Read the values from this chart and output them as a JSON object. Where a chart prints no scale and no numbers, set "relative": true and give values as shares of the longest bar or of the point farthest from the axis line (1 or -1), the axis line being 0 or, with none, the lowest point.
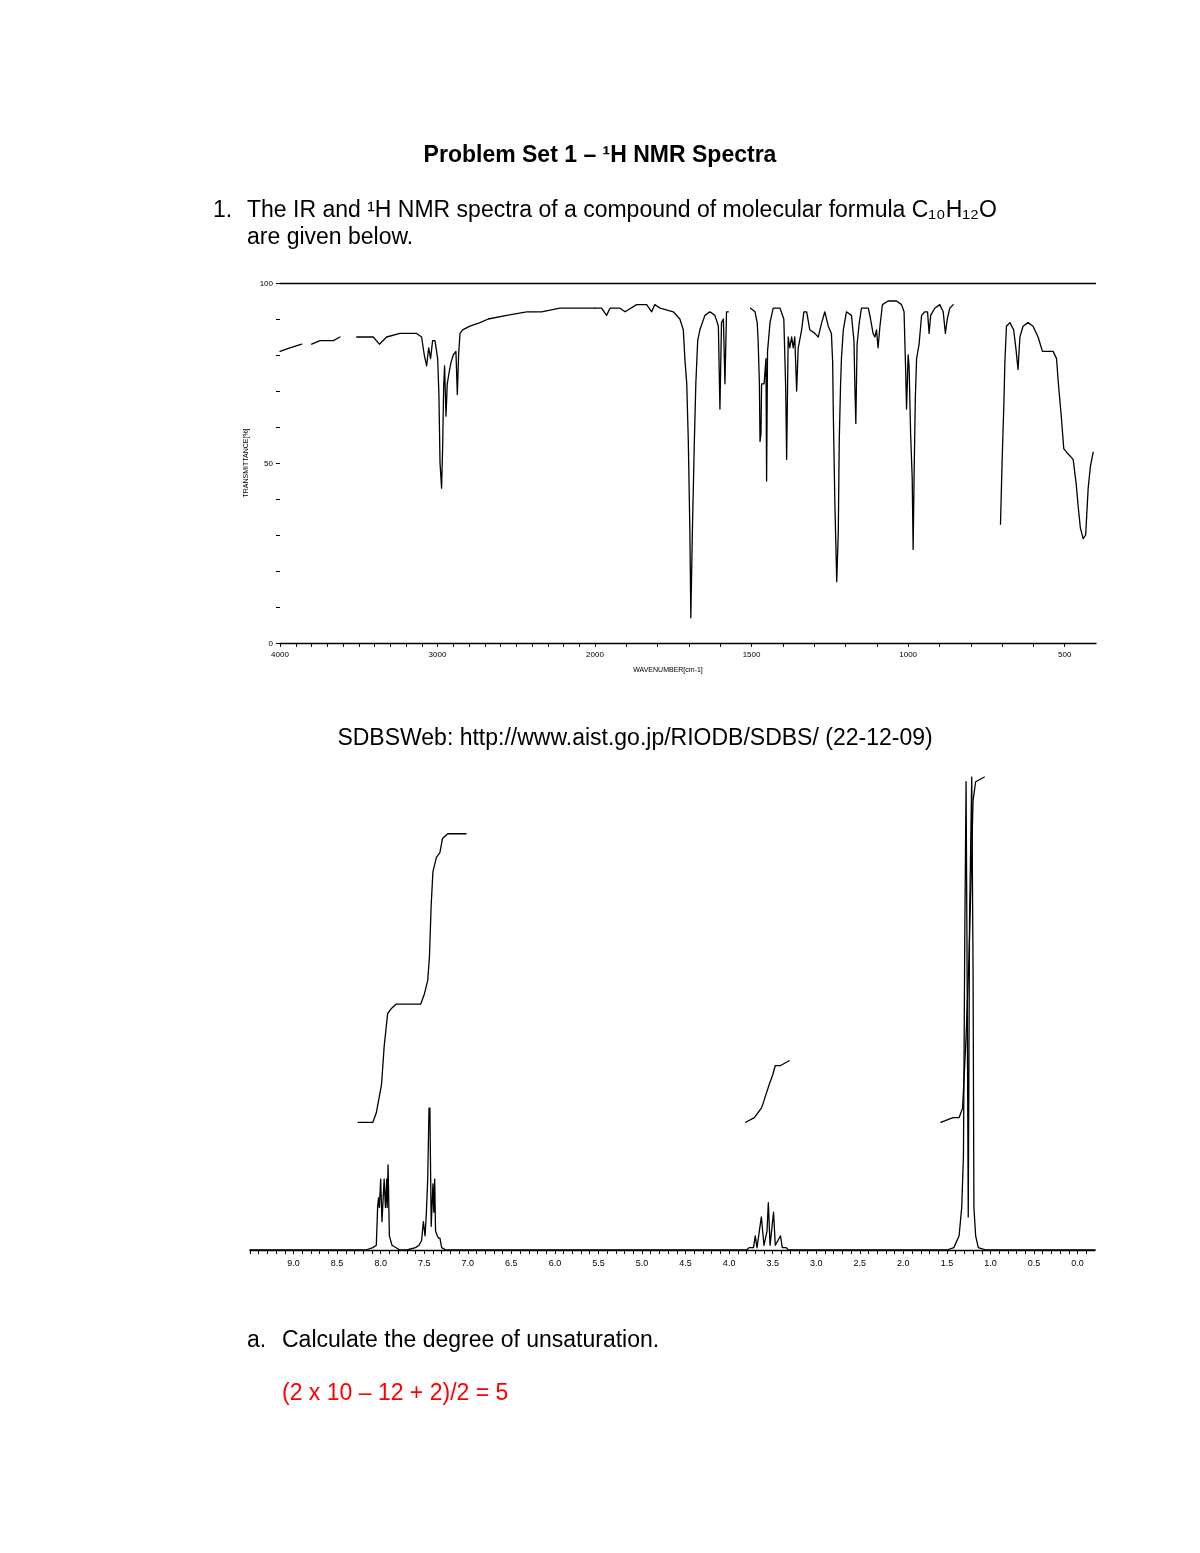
{
  "chart_data": [
    {
      "type": "line",
      "title": "Problem Set 1 – ¹H NMR Spectra",
      "subtitle": "1. The IR and ¹H NMR spectra of a compound of molecular formula C₁₀H₁₂O are given below.",
      "ylabel": "TRANSMITTANCE[%]",
      "color": "#000000",
      "x": [
        4000,
        3937,
        3862,
        3840,
        3799,
        3746,
        3700,
        3661,
        3619,
        3570,
        3513,
        3408,
        3369,
        3323,
        3238,
        3132,
        3101,
        3084,
        3069,
        3056,
        3044,
        3031,
        3016,
        2999,
        2991,
        2984,
        2974,
        2967,
        2961,
        2955,
        2946,
        2938,
        2927,
        2914,
        2900,
        2883,
        2874,
        2866,
        2857,
        2840,
        2794,
        2730,
        2678,
        2561,
        2434,
        2339,
        2223,
        2117,
        2000
      ],
      "values": [
        81,
        82,
        83,
        null,
        83,
        84,
        84,
        84,
        85,
        null,
        85,
        85,
        83,
        85,
        86,
        86,
        85,
        80,
        77,
        82,
        79,
        84,
        84,
        79,
        69,
        50,
        43,
        55,
        71,
        77,
        63,
        72,
        75,
        78,
        80,
        81,
        69,
        80,
        86,
        87,
        88,
        89,
        90,
        91,
        92,
        92,
        93,
        93,
        93
      ],
      "xlim": [
        4000,
        2000
      ],
      "ylim": [
        0,
        100
      ],
      "xticks": [
        4000,
        {
          "value": 3900,
          "label": null
        },
        {
          "value": 3800,
          "label": null
        },
        {
          "value": 3700,
          "label": null
        },
        {
          "value": 3600,
          "label": null
        },
        {
          "value": 3500,
          "label": null
        },
        {
          "value": 3400,
          "label": null
        },
        {
          "value": 3300,
          "label": null
        },
        {
          "value": 3200,
          "label": null
        },
        {
          "value": 3100,
          "label": null
        },
        3000,
        {
          "value": 2900,
          "label": null
        },
        {
          "value": 2800,
          "label": null
        },
        {
          "value": 2700,
          "label": null
        },
        {
          "value": 2600,
          "label": null
        },
        {
          "value": 2500,
          "label": null
        },
        {
          "value": 2400,
          "label": null
        },
        {
          "value": 2300,
          "label": null
        },
        {
          "value": 2200,
          "label": null
        },
        {
          "value": 2100,
          "label": null
        },
        2000
      ],
      "yticks": [
        0,
        {
          "value": 10,
          "label": null
        },
        {
          "value": 20,
          "label": null
        },
        {
          "value": 30,
          "label": null
        },
        {
          "value": 40,
          "label": null
        },
        50,
        {
          "value": 60,
          "label": null
        },
        {
          "value": 70,
          "label": null
        },
        {
          "value": 80,
          "label": null
        },
        {
          "value": 90,
          "label": null
        },
        100
      ],
      "ref_lines": [
        {
          "axis": "y",
          "value": 100
        }
      ]
    },
    {
      "type": "line",
      "xlabel": "WAVENUMBER[cm-1]",
      "annotations": [
        "SDBSWeb: http://www.aist.go.jp/RIODB/SDBS/ (22-12-09)"
      ],
      "color": "#000000",
      "x": [
        2000,
        1979,
        1963,
        1952,
        1920,
        1904,
        1867,
        1835,
        1819,
        1809,
        1792,
        1750,
        1729,
        1718,
        1713,
        1707,
        1702,
        1697,
        1694,
        1689,
        1683,
        1678,
        1672,
        1665,
        1649,
        1633,
        1617,
        1606,
        1601,
        1596,
        1590,
        1585,
        1580,
        1574,
        1540,
        1503,
        1489,
        1482,
        1479,
        1475,
        1473,
        1470,
        1468,
        1460,
        1454,
        1452,
        1449,
        1441,
        1431,
        1409,
        1397,
        1391,
        1388,
        1385,
        1383,
        1378,
        1372,
        1367,
        1362,
        1356,
        1351,
        1340,
        1333,
        1324,
        1314,
        1298,
        1287,
        1276,
        1266,
        1255,
        1245,
        1241,
        1239,
        1234,
        1228,
        1223,
        1220,
        1216,
        1213,
        1207,
        1197,
        1181,
        1173,
        1170,
        1167,
        1163,
        1156,
        1149,
        1127,
        1120,
        1112,
        1106,
        1101,
        1096,
        1090,
        1082,
        1064,
        1037,
        1021,
        1013,
        1008,
        1005,
        1000,
        997,
        992,
        987,
        984,
        981,
        977,
        973,
        965,
        957,
        947,
        938,
        933,
        928,
        915,
        899,
        888,
        881,
        875,
        867,
        856,
        780,
        705,
        700,
        694,
        691,
        686,
        675,
        663,
        656,
        649,
        643,
        633,
        617,
        601,
        585,
        571,
        553,
        537,
        526,
        521,
        510,
        503,
        494,
        473,
        463,
        457,
        450,
        441,
        433,
        425,
        418,
        409
      ],
      "values": [
        93,
        93,
        91,
        93,
        93,
        92,
        94,
        94,
        92,
        94,
        93,
        92,
        90,
        87,
        79,
        72,
        56,
        31,
        7,
        31,
        55,
        72,
        84,
        87,
        91,
        92,
        91,
        88,
        65,
        89,
        90,
        72,
        92,
        92,
        null,
        93,
        92,
        89,
        84,
        72,
        56,
        58,
        72,
        72,
        79,
        45,
        81,
        89,
        93,
        93,
        90,
        71,
        51,
        71,
        85,
        82,
        85,
        82,
        85,
        70,
        82,
        87,
        92,
        92,
        87,
        86,
        85,
        89,
        92,
        88,
        86,
        78,
        64,
        39,
        17,
        31,
        56,
        71,
        79,
        87,
        92,
        91,
        84,
        71,
        61,
        83,
        89,
        93,
        93,
        90,
        86,
        85,
        87,
        82,
        88,
        94,
        95,
        95,
        94,
        92,
        76,
        65,
        80,
        77,
        58,
        46,
        26,
        46,
        68,
        79,
        83,
        91,
        92,
        92,
        86,
        91,
        93,
        94,
        92,
        86,
        90,
        93,
        94,
        null,
        33,
        50,
        67,
        78,
        88,
        89,
        87,
        82,
        76,
        85,
        88,
        89,
        88,
        85,
        81,
        81,
        81,
        79,
        73,
        62,
        54,
        53,
        51,
        44,
        38,
        32,
        29,
        30,
        43,
        49,
        53
      ],
      "xlim": [
        2000,
        400
      ],
      "ylim": [
        0,
        100
      ],
      "tick_labels": "x",
      "xticks": [
        {
          "value": 1900,
          "label": null
        },
        {
          "value": 1800,
          "label": null
        },
        {
          "value": 1700,
          "label": null
        },
        {
          "value": 1600,
          "label": null
        },
        1500,
        {
          "value": 1400,
          "label": null
        },
        {
          "value": 1300,
          "label": null
        },
        {
          "value": 1200,
          "label": null
        },
        {
          "value": 1100,
          "label": null
        },
        1000,
        {
          "value": 900,
          "label": null
        },
        {
          "value": 800,
          "label": null
        },
        {
          "value": 700,
          "label": null
        },
        {
          "value": 600,
          "label": null
        },
        500
      ],
      "ref_lines": [
        {
          "axis": "y",
          "value": 100
        }
      ]
    },
    {
      "type": "line",
      "relative": true,
      "annotations": [
        "a. Calculate the degree of unsaturation.",
        "(2 x 10 – 12 + 2)/2 = 5"
      ],
      "xlim": [
        9.5,
        -0.2
      ],
      "xticks": [
        {
          "value": 9.5,
          "label": null
        },
        {
          "value": 9.4,
          "label": null
        },
        {
          "value": 9.3,
          "label": null
        },
        {
          "value": 9.2,
          "label": null
        },
        {
          "value": 9.1,
          "label": null
        },
        {
          "value": 9,
          "label": "9.0"
        },
        {
          "value": 8.9,
          "label": null
        },
        {
          "value": 8.8,
          "label": null
        },
        {
          "value": 8.7,
          "label": null
        },
        {
          "value": 8.6,
          "label": null
        },
        {
          "value": 8.5,
          "label": "8.5"
        },
        {
          "value": 8.4,
          "label": null
        },
        {
          "value": 8.3,
          "label": null
        },
        {
          "value": 8.2,
          "label": null
        },
        {
          "value": 8.1,
          "label": null
        },
        {
          "value": 8,
          "label": "8.0"
        },
        {
          "value": 7.9,
          "label": null
        },
        {
          "value": 7.8,
          "label": null
        },
        {
          "value": 7.7,
          "label": null
        },
        {
          "value": 7.6,
          "label": null
        },
        {
          "value": 7.5,
          "label": "7.5"
        },
        {
          "value": 7.4,
          "label": null
        },
        {
          "value": 7.3,
          "label": null
        },
        {
          "value": 7.2,
          "label": null
        },
        {
          "value": 7.1,
          "label": null
        },
        {
          "value": 7,
          "label": "7.0"
        },
        {
          "value": 6.9,
          "label": null
        },
        {
          "value": 6.8,
          "label": null
        },
        {
          "value": 6.7,
          "label": null
        },
        {
          "value": 6.6,
          "label": null
        },
        {
          "value": 6.5,
          "label": "6.5"
        },
        {
          "value": 6.4,
          "label": null
        },
        {
          "value": 6.3,
          "label": null
        },
        {
          "value": 6.2,
          "label": null
        },
        {
          "value": 6.1,
          "label": null
        },
        {
          "value": 6,
          "label": "6.0"
        },
        {
          "value": 5.9,
          "label": null
        },
        {
          "value": 5.8,
          "label": null
        },
        {
          "value": 5.7,
          "label": null
        },
        {
          "value": 5.6,
          "label": null
        },
        {
          "value": 5.5,
          "label": "5.5"
        },
        {
          "value": 5.4,
          "label": null
        },
        {
          "value": 5.3,
          "label": null
        },
        {
          "value": 5.2,
          "label": null
        },
        {
          "value": 5.1,
          "label": null
        },
        {
          "value": 5,
          "label": "5.0"
        },
        {
          "value": 4.9,
          "label": null
        },
        {
          "value": 4.8,
          "label": null
        },
        {
          "value": 4.7,
          "label": null
        },
        {
          "value": 4.6,
          "label": null
        },
        {
          "value": 4.5,
          "label": "4.5"
        },
        {
          "value": 4.4,
          "label": null
        },
        {
          "value": 4.3,
          "label": null
        },
        {
          "value": 4.2,
          "label": null
        },
        {
          "value": 4.1,
          "label": null
        },
        {
          "value": 4,
          "label": "4.0"
        },
        {
          "value": 3.9,
          "label": null
        },
        {
          "value": 3.8,
          "label": null
        },
        {
          "value": 3.7,
          "label": null
        },
        {
          "value": 3.6,
          "label": null
        },
        {
          "value": 3.5,
          "label": "3.5"
        },
        {
          "value": 3.4,
          "label": null
        },
        {
          "value": 3.3,
          "label": null
        },
        {
          "value": 3.2,
          "label": null
        },
        {
          "value": 3.1,
          "label": null
        },
        {
          "value": 3,
          "label": "3.0"
        },
        {
          "value": 2.9,
          "label": null
        },
        {
          "value": 2.8,
          "label": null
        },
        {
          "value": 2.7,
          "label": null
        },
        {
          "value": 2.6,
          "label": null
        },
        {
          "value": 2.5,
          "label": "2.5"
        },
        {
          "value": 2.4,
          "label": null
        },
        {
          "value": 2.3,
          "label": null
        },
        {
          "value": 2.2,
          "label": null
        },
        {
          "value": 2.1,
          "label": null
        },
        {
          "value": 2,
          "label": "2.0"
        },
        {
          "value": 1.9,
          "label": null
        },
        {
          "value": 1.8,
          "label": null
        },
        {
          "value": 1.7,
          "label": null
        },
        {
          "value": 1.6,
          "label": null
        },
        {
          "value": 1.5,
          "label": "1.5"
        },
        {
          "value": 1.4,
          "label": null
        },
        {
          "value": 1.3,
          "label": null
        },
        {
          "value": 1.2,
          "label": null
        },
        {
          "value": 1.1,
          "label": null
        },
        {
          "value": 1,
          "label": "1.0"
        },
        {
          "value": 0.9,
          "label": null
        },
        {
          "value": 0.8,
          "label": null
        },
        {
          "value": 0.7,
          "label": null
        },
        {
          "value": 0.6,
          "label": null
        },
        {
          "value": 0.5,
          "label": "0.5"
        },
        {
          "value": 0.4,
          "label": null
        },
        {
          "value": 0.3,
          "label": null
        },
        {
          "value": 0.2,
          "label": null
        },
        {
          "value": 0.1,
          "label": null
        },
        {
          "value": 0,
          "label": "0.0"
        },
        {
          "value": -0.1,
          "label": null
        }
      ],
      "series": [
        {
          "color": "#000000",
          "x": [
            9.5,
            8.17,
            8.09,
            8.05,
            8.035,
            8.025,
            8.015,
            8.0,
            7.985,
            7.96,
            7.945,
            7.93,
            7.925,
            7.915,
            7.9,
            7.87,
            7.78,
            7.7,
            7.6,
            7.56,
            7.53,
            7.51,
            7.49,
            7.475,
            7.46,
            7.445,
            7.435,
            7.42,
            7.4,
            7.39,
            7.38,
            7.37,
            7.35,
            7.335,
            7.32,
            7.3,
            7.25,
            3.8,
            3.77,
            3.72,
            3.7,
            3.68,
            3.63,
            3.6,
            3.565,
            3.55,
            3.53,
            3.49,
            3.47,
            3.41,
            3.39,
            3.345,
            3.32,
            1.5,
            1.42,
            1.36,
            1.33,
            1.31,
            1.295,
            1.28,
            1.27,
            1.255,
            1.24,
            1.215,
            1.2,
            1.19,
            1.17,
            1.14,
            1.05,
            -0.2
          ],
          "values": [
            0,
            0,
            0.005,
            0.01,
            0.09,
            0.11,
            0.09,
            0.15,
            0.06,
            0.15,
            0.09,
            0.15,
            0.09,
            0.18,
            0.03,
            0.01,
            0,
            0,
            0.005,
            0.01,
            0.02,
            0.06,
            0.03,
            0.08,
            0.15,
            0.3,
            0.3,
            0.05,
            0.14,
            0.08,
            0.15,
            0.04,
            0.03,
            0.025,
            0.025,
            0.005,
            0,
            0,
            0.005,
            0.005,
            0.03,
            0.005,
            0.07,
            0.01,
            0.04,
            0.1,
            0.01,
            0.08,
            0.01,
            0.03,
            0.005,
            0.005,
            0,
            0,
            0.005,
            0.03,
            0.09,
            0.2,
            0.66,
            0.99,
            0.66,
            0.07,
            0.7,
            1,
            0.6,
            0.09,
            0.03,
            0.005,
            0,
            0
          ]
        },
        {
          "color": "#000000",
          "x": [
            8.26,
            8.09,
            8.05,
            7.99,
            7.96,
            7.92,
            7.88,
            7.82,
            7.61,
            7.54,
            7.5,
            7.46,
            7.44,
            7.42,
            7.4,
            7.36,
            7.32,
            7.29,
            7.23,
            7.02,
            5.5,
            3.81,
            3.71,
            3.63,
            3.61,
            3.54,
            3.5,
            3.47,
            3.41,
            3.31,
            2.5,
            1.57,
            1.43,
            1.36,
            1.32,
            1.28,
            1.25,
            1.22,
            1.2,
            1.17,
            1.07
          ],
          "values": [
            0.27,
            0.27,
            0.29,
            0.35,
            0.43,
            0.5,
            0.51,
            0.52,
            0.52,
            0.52,
            0.54,
            0.57,
            0.62,
            0.73,
            0.8,
            0.83,
            0.84,
            0.87,
            0.88,
            0.88,
            null,
            0.27,
            0.28,
            0.3,
            0.31,
            0.35,
            0.37,
            0.39,
            0.39,
            0.4,
            null,
            0.27,
            0.28,
            0.28,
            0.3,
            0.45,
            0.6,
            0.8,
            0.95,
            0.99,
            1
          ]
        }
      ]
    }
  ]
}
